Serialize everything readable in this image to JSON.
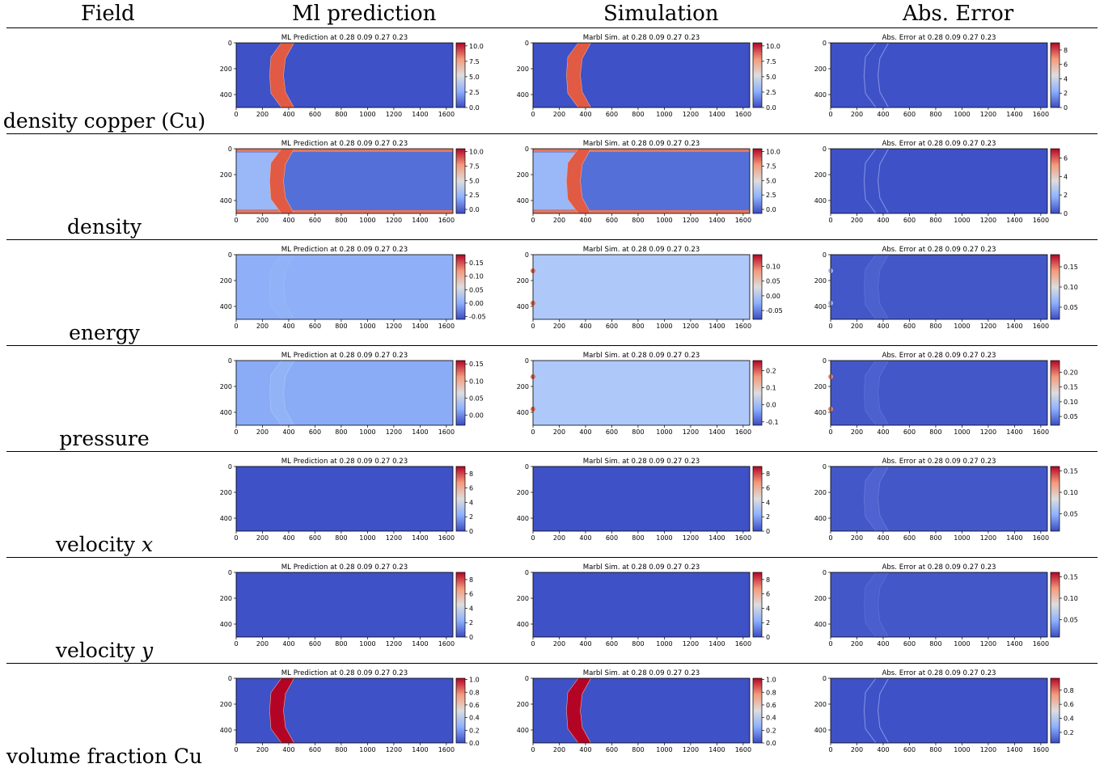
{
  "header": {
    "col_field": "Field",
    "col_ml": "Ml prediction",
    "col_sim": "Simulation",
    "col_err": "Abs. Error"
  },
  "colors": {
    "cmap_low": "#3b4cc0",
    "cmap_mid": "#dddddd",
    "cmap_high": "#b40426",
    "background_blue": "#3f51c6",
    "copper_red": "#e05a44"
  },
  "chart_data": {
    "type": "heatmap",
    "colormap": "coolwarm",
    "x_ticks": [
      "0",
      "200",
      "400",
      "600",
      "800",
      "1000",
      "1200",
      "1400",
      "1600"
    ],
    "y_ticks": [
      "0",
      "200",
      "400"
    ],
    "xlim": [
      0,
      1650
    ],
    "ylim": [
      500,
      0
    ],
    "rows": [
      {
        "field": "density copper (Cu)",
        "field_main": "density copper (Cu)",
        "field_var": "",
        "panels": [
          {
            "kind": "ml",
            "title": "ML Prediction at 0.28 0.09 0.27 0.23",
            "cbar_ticks": [
              "10.0",
              "7.5",
              "5.0",
              "2.5",
              "0.0"
            ],
            "vmin": 0,
            "vmax": 10.5,
            "fill": "#3f51c6",
            "chevron": "#e05a44",
            "chevron_style": "solid"
          },
          {
            "kind": "sim",
            "title": "Marbl Sim. at 0.28 0.09 0.27 0.23",
            "cbar_ticks": [
              "10.0",
              "7.5",
              "5.0",
              "2.5",
              "0.0"
            ],
            "vmin": 0,
            "vmax": 10.5,
            "fill": "#3f51c6",
            "chevron": "#e05a44",
            "chevron_style": "solid"
          },
          {
            "kind": "err",
            "title": "Abs. Error at 0.28 0.09 0.27 0.23",
            "cbar_ticks": [
              "8",
              "6",
              "4",
              "2",
              "0"
            ],
            "vmin": 0,
            "vmax": 9,
            "fill": "#3f51c6",
            "chevron": "#7f8fe6",
            "chevron_style": "outline"
          }
        ]
      },
      {
        "field": "density",
        "field_main": "density",
        "field_var": "",
        "panels": [
          {
            "kind": "ml",
            "title": "ML Prediction at 0.28 0.09 0.27 0.23",
            "cbar_ticks": [
              "10.0",
              "7.5",
              "5.0",
              "2.5",
              "0.0"
            ],
            "vmin": -0.7,
            "vmax": 10.5,
            "fill": "#5470d8",
            "left_fill": "#9ab8f8",
            "bands": "#e5765c",
            "chevron": "#e05a44",
            "chevron_style": "solid"
          },
          {
            "kind": "sim",
            "title": "Marbl Sim. at 0.28 0.09 0.27 0.23",
            "cbar_ticks": [
              "10.0",
              "7.5",
              "5.0",
              "2.5",
              "0.0"
            ],
            "vmin": -0.7,
            "vmax": 10.5,
            "fill": "#5470d8",
            "left_fill": "#9ab8f8",
            "bands": "#e5765c",
            "chevron": "#e05a44",
            "chevron_style": "solid"
          },
          {
            "kind": "err",
            "title": "Abs. Error at 0.28 0.09 0.27 0.23",
            "cbar_ticks": [
              "6",
              "4",
              "2",
              "0"
            ],
            "vmin": 0,
            "vmax": 7,
            "fill": "#3f51c6",
            "chevron": "#7f8fe6",
            "chevron_style": "outline"
          }
        ]
      },
      {
        "field": "energy",
        "field_main": "energy",
        "field_var": "",
        "panels": [
          {
            "kind": "ml",
            "title": "ML Prediction at 0.28 0.09 0.27 0.23",
            "cbar_ticks": [
              "0.15",
              "0.10",
              "0.05",
              "0.00",
              "-0.05"
            ],
            "vmin": -0.06,
            "vmax": 0.18,
            "fill": "#8fb0f8",
            "chevron": "#99b8fa",
            "chevron_style": "faint"
          },
          {
            "kind": "sim",
            "title": "Marbl Sim. at 0.28 0.09 0.27 0.23",
            "cbar_ticks": [
              "0.10",
              "0.05",
              "0.00",
              "-0.05"
            ],
            "vmin": -0.08,
            "vmax": 0.14,
            "fill": "#aec8fa",
            "chevron": "",
            "chevron_style": "none",
            "dots": "#e0694f"
          },
          {
            "kind": "err",
            "title": "Abs. Error at 0.28 0.09 0.27 0.23",
            "cbar_ticks": [
              "0.15",
              "0.10",
              "0.05"
            ],
            "vmin": 0.02,
            "vmax": 0.18,
            "fill": "#4457c9",
            "chevron": "#5d72d6",
            "chevron_style": "faint",
            "dots": "#aabcee"
          }
        ]
      },
      {
        "field": "pressure",
        "field_main": "pressure",
        "field_var": "",
        "panels": [
          {
            "kind": "ml",
            "title": "ML Prediction at 0.28 0.09 0.27 0.23",
            "cbar_ticks": [
              "0.15",
              "0.10",
              "0.05",
              "0.00"
            ],
            "vmin": -0.03,
            "vmax": 0.16,
            "fill": "#8aacf6",
            "chevron": "#a4c0fa",
            "chevron_style": "faint"
          },
          {
            "kind": "sim",
            "title": "Marbl Sim. at 0.28 0.09 0.27 0.23",
            "cbar_ticks": [
              "0.2",
              "0.1",
              "0.0",
              "-0.1"
            ],
            "vmin": -0.12,
            "vmax": 0.26,
            "fill": "#aec8fa",
            "chevron": "",
            "chevron_style": "none",
            "dots": "#e0694f"
          },
          {
            "kind": "err",
            "title": "Abs. Error at 0.28 0.09 0.27 0.23",
            "cbar_ticks": [
              "0.20",
              "0.15",
              "0.10",
              "0.05"
            ],
            "vmin": 0.02,
            "vmax": 0.24,
            "fill": "#4457c9",
            "chevron": "#5d72d6",
            "chevron_style": "faint",
            "dots": "#e58a6e"
          }
        ]
      },
      {
        "field": "velocity x",
        "field_main": "velocity ",
        "field_var": "x",
        "panels": [
          {
            "kind": "ml",
            "title": "ML Prediction at 0.28 0.09 0.27 0.23",
            "cbar_ticks": [
              "8",
              "6",
              "4",
              "2",
              "0"
            ],
            "vmin": 0,
            "vmax": 9,
            "fill": "#3f51c6",
            "chevron": "",
            "chevron_style": "none"
          },
          {
            "kind": "sim",
            "title": "Marbl Sim. at 0.28 0.09 0.27 0.23",
            "cbar_ticks": [
              "8",
              "6",
              "4",
              "2",
              "0"
            ],
            "vmin": 0,
            "vmax": 9,
            "fill": "#3f51c6",
            "chevron": "",
            "chevron_style": "none"
          },
          {
            "kind": "err",
            "title": "Abs. Error at 0.28 0.09 0.27 0.23",
            "cbar_ticks": [
              "0.15",
              "0.10",
              "0.05"
            ],
            "vmin": 0.01,
            "vmax": 0.16,
            "fill": "#4457c9",
            "chevron": "#6479da",
            "chevron_style": "faint"
          }
        ]
      },
      {
        "field": "velocity y",
        "field_main": "velocity ",
        "field_var": "y",
        "panels": [
          {
            "kind": "ml",
            "title": "ML Prediction at 0.28 0.09 0.27 0.23",
            "cbar_ticks": [
              "8",
              "6",
              "4",
              "2",
              "0"
            ],
            "vmin": 0,
            "vmax": 9,
            "fill": "#3f51c6",
            "chevron": "",
            "chevron_style": "none"
          },
          {
            "kind": "sim",
            "title": "Marbl Sim. at 0.28 0.09 0.27 0.23",
            "cbar_ticks": [
              "8",
              "6",
              "4",
              "2",
              "0"
            ],
            "vmin": 0,
            "vmax": 9,
            "fill": "#3f51c6",
            "chevron": "",
            "chevron_style": "none"
          },
          {
            "kind": "err",
            "title": "Abs. Error at 0.28 0.09 0.27 0.23",
            "cbar_ticks": [
              "0.15",
              "0.10",
              "0.05"
            ],
            "vmin": 0.01,
            "vmax": 0.16,
            "fill": "#4457c9",
            "chevron": "#5a6ed5",
            "chevron_style": "faint"
          }
        ]
      },
      {
        "field": "volume fraction Cu",
        "field_main": "volume fraction Cu",
        "field_var": "",
        "panels": [
          {
            "kind": "ml",
            "title": "ML Prediction at 0.28 0.09 0.27 0.23",
            "cbar_ticks": [
              "1.0",
              "0.8",
              "0.6",
              "0.4",
              "0.2",
              "0.0"
            ],
            "vmin": 0,
            "vmax": 1.02,
            "fill": "#3f51c6",
            "chevron": "#b40426",
            "chevron_style": "solid"
          },
          {
            "kind": "sim",
            "title": "Marbl Sim. at 0.28 0.09 0.27 0.23",
            "cbar_ticks": [
              "1.0",
              "0.8",
              "0.6",
              "0.4",
              "0.2",
              "0.0"
            ],
            "vmin": 0,
            "vmax": 1.02,
            "fill": "#3f51c6",
            "chevron": "#b40426",
            "chevron_style": "solid"
          },
          {
            "kind": "err",
            "title": "Abs. Error at 0.28 0.09 0.27 0.23",
            "cbar_ticks": [
              "0.8",
              "0.6",
              "0.4",
              "0.2"
            ],
            "vmin": 0.05,
            "vmax": 0.97,
            "fill": "#3f51c6",
            "chevron": "#7f8fe6",
            "chevron_style": "outline"
          }
        ]
      }
    ]
  }
}
